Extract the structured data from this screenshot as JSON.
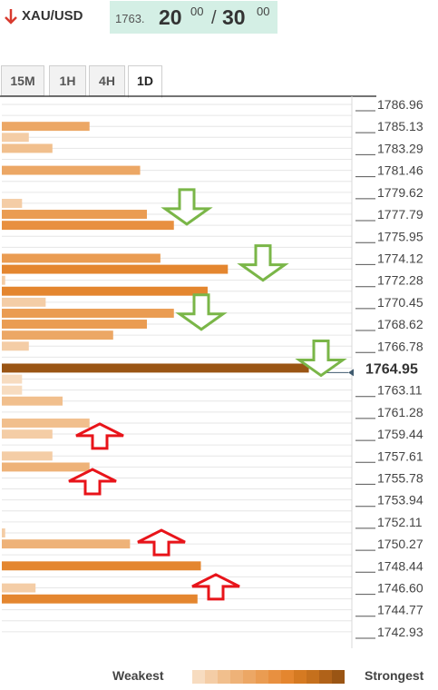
{
  "header": {
    "pair": "XAU/USD",
    "price_small": "1763.",
    "price_big1": "20",
    "price_sup1": "00",
    "separator": "/",
    "price_big2": "30",
    "price_sup2": "00"
  },
  "tabs": [
    {
      "label": "15M",
      "active": false
    },
    {
      "label": "1H",
      "active": false
    },
    {
      "label": "4H",
      "active": false
    },
    {
      "label": "1D",
      "active": true
    }
  ],
  "legend": {
    "weakest": "Weakest",
    "strongest": "Strongest",
    "colors": [
      "#f7dcc0",
      "#f4cda6",
      "#f1bf8d",
      "#eeb278",
      "#eca765",
      "#ea9c52",
      "#e89040",
      "#e4862f",
      "#d57a22",
      "#c5701d",
      "#b06219",
      "#9a5514"
    ]
  },
  "chart_data": {
    "type": "bar",
    "price_range": [
      1742.93,
      1786.96
    ],
    "price_labels": [
      "1786.96",
      "1785.13",
      "1783.29",
      "1781.46",
      "1779.62",
      "1777.79",
      "1775.95",
      "1774.12",
      "1772.28",
      "1770.45",
      "1768.62",
      "1766.78",
      "1764.95",
      "1763.11",
      "1761.28",
      "1759.44",
      "1757.61",
      "1755.78",
      "1753.94",
      "1752.11",
      "1750.27",
      "1748.44",
      "1746.60",
      "1744.77",
      "1742.93"
    ],
    "current_price": 1764.95,
    "current_label": "1764.95",
    "confluence_bars": [
      {
        "price": 1785.13,
        "strength": 0.26,
        "color": "#eca765"
      },
      {
        "price": 1784.21,
        "strength": 0.08,
        "color": "#f4cda6"
      },
      {
        "price": 1783.29,
        "strength": 0.15,
        "color": "#f1bf8d"
      },
      {
        "price": 1781.46,
        "strength": 0.41,
        "color": "#eca765"
      },
      {
        "price": 1778.7,
        "strength": 0.06,
        "color": "#f4cda6"
      },
      {
        "price": 1777.79,
        "strength": 0.43,
        "color": "#ea9c52"
      },
      {
        "price": 1776.87,
        "strength": 0.51,
        "color": "#e89040"
      },
      {
        "price": 1774.12,
        "strength": 0.47,
        "color": "#ea9c52"
      },
      {
        "price": 1773.2,
        "strength": 0.67,
        "color": "#e4862f"
      },
      {
        "price": 1772.28,
        "strength": 0.01,
        "color": "#f4cda6"
      },
      {
        "price": 1771.37,
        "strength": 0.61,
        "color": "#e4862f"
      },
      {
        "price": 1770.45,
        "strength": 0.13,
        "color": "#f4cda6"
      },
      {
        "price": 1769.53,
        "strength": 0.51,
        "color": "#ea9c52"
      },
      {
        "price": 1768.62,
        "strength": 0.43,
        "color": "#ea9c52"
      },
      {
        "price": 1767.7,
        "strength": 0.33,
        "color": "#eca765"
      },
      {
        "price": 1766.78,
        "strength": 0.08,
        "color": "#f4cda6"
      },
      {
        "price": 1764.95,
        "strength": 0.91,
        "color": "#9a5514"
      },
      {
        "price": 1764.03,
        "strength": 0.06,
        "color": "#f7dcc0"
      },
      {
        "price": 1763.11,
        "strength": 0.06,
        "color": "#f7dcc0"
      },
      {
        "price": 1762.2,
        "strength": 0.18,
        "color": "#f1bf8d"
      },
      {
        "price": 1760.36,
        "strength": 0.26,
        "color": "#f1bf8d"
      },
      {
        "price": 1759.44,
        "strength": 0.15,
        "color": "#f4cda6"
      },
      {
        "price": 1757.61,
        "strength": 0.15,
        "color": "#f4cda6"
      },
      {
        "price": 1756.69,
        "strength": 0.26,
        "color": "#eeb278"
      },
      {
        "price": 1751.19,
        "strength": 0.01,
        "color": "#f4cda6"
      },
      {
        "price": 1750.27,
        "strength": 0.38,
        "color": "#eeb278"
      },
      {
        "price": 1748.44,
        "strength": 0.59,
        "color": "#e4862f"
      },
      {
        "price": 1746.6,
        "strength": 0.1,
        "color": "#f4cda6"
      },
      {
        "price": 1745.68,
        "strength": 0.58,
        "color": "#e4862f"
      }
    ],
    "arrows": [
      {
        "direction": "down",
        "price": 1778.33,
        "position": 0.51,
        "color": "#7ab648"
      },
      {
        "direction": "down",
        "price": 1773.65,
        "position": 0.72,
        "color": "#7ab648"
      },
      {
        "direction": "down",
        "price": 1769.55,
        "position": 0.55,
        "color": "#7ab648"
      },
      {
        "direction": "down",
        "price": 1765.7,
        "position": 0.88,
        "color": "#7ab648"
      },
      {
        "direction": "up",
        "price": 1759.23,
        "position": 0.27,
        "color": "#e8141a"
      },
      {
        "direction": "up",
        "price": 1755.43,
        "position": 0.25,
        "color": "#e8141a"
      },
      {
        "direction": "up",
        "price": 1750.35,
        "position": 0.44,
        "color": "#e8141a"
      },
      {
        "direction": "up",
        "price": 1746.65,
        "position": 0.59,
        "color": "#e8141a"
      }
    ],
    "title": "",
    "xlabel": "",
    "ylabel": ""
  }
}
